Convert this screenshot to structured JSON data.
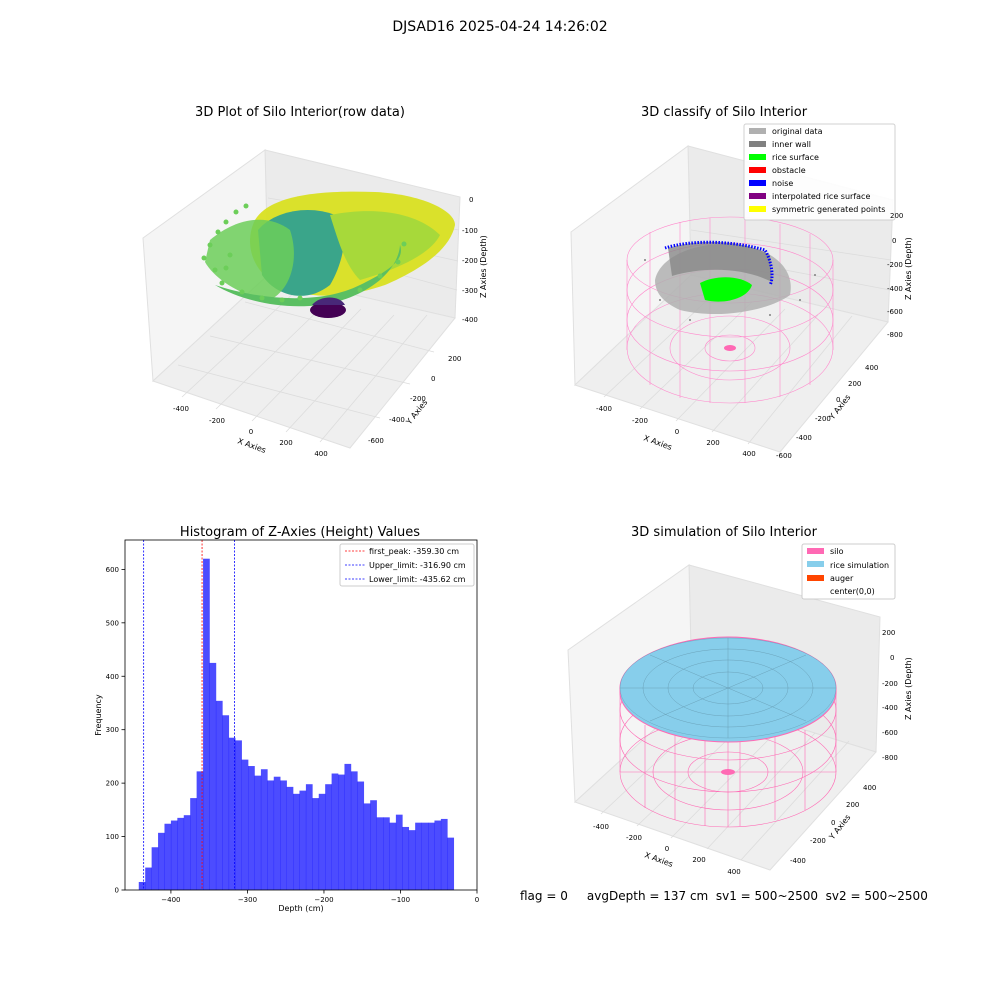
{
  "suptitle": "DJSAD16 2025-04-24 14:26:02",
  "caption": "flag = 0     avgDepth = 137 cm  sv1 = 500~2500  sv2 = 500~2500",
  "panels": {
    "raw": {
      "title": "3D Plot of Silo Interior(row data)",
      "xlabel": "X Axies",
      "ylabel": "Y Axies",
      "zlabel": "Z Axies (Depth)",
      "xticks": [
        "-400",
        "-200",
        "0",
        "200",
        "400"
      ],
      "yticks": [
        "200",
        "0",
        "-200",
        "-400",
        "-600"
      ],
      "zticks": [
        "0",
        "-100",
        "-200",
        "-300",
        "-400"
      ]
    },
    "classify": {
      "title": "3D classify of Silo Interior",
      "xlabel": "X Axies",
      "ylabel": "Y Axies",
      "zlabel": "Z Axies (Depth)",
      "xticks": [
        "-400",
        "-200",
        "0",
        "200",
        "400"
      ],
      "yticks": [
        "400",
        "200",
        "0",
        "-200",
        "-400",
        "-600"
      ],
      "zticks": [
        "200",
        "0",
        "-200",
        "-400",
        "-600",
        "-800"
      ],
      "legend": [
        {
          "label": "original data",
          "color": "#b0b0b0"
        },
        {
          "label": "inner wall",
          "color": "#808080"
        },
        {
          "label": "rice surface",
          "color": "#00ff00"
        },
        {
          "label": "obstacle",
          "color": "#ff0000"
        },
        {
          "label": "noise",
          "color": "#0000ff"
        },
        {
          "label": "interpolated rice surface",
          "color": "#800080"
        },
        {
          "label": "symmetric generated points",
          "color": "#ffff00"
        }
      ]
    },
    "simulation": {
      "title": "3D simulation of Silo Interior",
      "xlabel": "X Axies",
      "ylabel": "Y Axies",
      "zlabel": "Z Axies (Depth)",
      "xticks": [
        "-400",
        "-200",
        "0",
        "200",
        "400"
      ],
      "yticks": [
        "400",
        "200",
        "0",
        "-200",
        "-400"
      ],
      "zticks": [
        "200",
        "0",
        "-200",
        "-400",
        "-600",
        "-800"
      ],
      "legend": [
        {
          "label": "silo",
          "color": "#ff69b4"
        },
        {
          "label": "rice simulation",
          "color": "#87ceeb"
        },
        {
          "label": "auger",
          "color": "#ff4500"
        },
        {
          "label": "center(0,0)",
          "color": "#ffffff"
        }
      ]
    }
  },
  "chart_data": {
    "type": "bar",
    "title": "Histogram of Z-Axies (Height) Values",
    "xlabel": "Depth (cm)",
    "ylabel": "Frequency",
    "xlim": [
      -460,
      0
    ],
    "ylim": [
      0,
      655
    ],
    "xticks": [
      -400,
      -300,
      -200,
      -100,
      0
    ],
    "xtick_labels": [
      "−400",
      "−300",
      "−200",
      "−100",
      "0"
    ],
    "yticks": [
      0,
      100,
      200,
      300,
      400,
      500,
      600
    ],
    "bar_color": "#0000ff",
    "bar_start": -442,
    "bin_width": 8.4,
    "values": [
      15,
      42,
      80,
      107,
      124,
      130,
      135,
      140,
      172,
      222,
      620,
      425,
      354,
      327,
      285,
      280,
      244,
      232,
      214,
      226,
      205,
      212,
      205,
      193,
      180,
      186,
      198,
      172,
      180,
      198,
      218,
      216,
      236,
      222,
      203,
      162,
      168,
      136,
      136,
      126,
      141,
      118,
      112,
      126,
      126,
      126,
      130,
      133,
      98
    ],
    "vlines": [
      {
        "x": -359.3,
        "color": "#ff0000",
        "label": "first_peak: -359.30 cm"
      },
      {
        "x": -316.9,
        "color": "#0000ff",
        "label": "Upper_limit: -316.90 cm"
      },
      {
        "x": -435.62,
        "color": "#0000ff",
        "label": "Lower_limit: -435.62 cm"
      }
    ],
    "legend_position": "top-right"
  }
}
